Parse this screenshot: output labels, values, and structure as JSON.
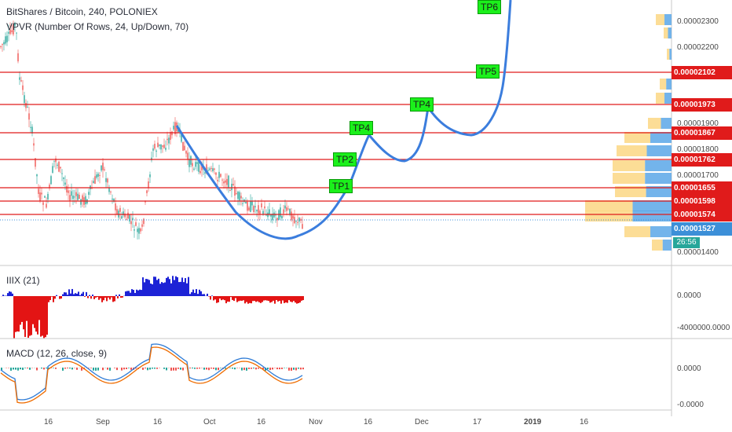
{
  "header": {
    "symbol": "BitShares / Bitcoin, 240, POLONIEX",
    "vpvr": "VPVR (Number Of Rows, 24, Up/Down, 70)",
    "indicator1": "IIIX (21)",
    "indicator2": "MACD (12, 26, close, 9)"
  },
  "price_axis": [
    "0.00002300",
    "0.00002200",
    "0.00001900",
    "0.00001800",
    "0.00001700",
    "0.00001400"
  ],
  "price_lines": [
    {
      "label": "0.00002102",
      "color": "#e01b1b"
    },
    {
      "label": "0.00001973",
      "color": "#e01b1b"
    },
    {
      "label": "0.00001867",
      "color": "#e01b1b"
    },
    {
      "label": "0.00001762",
      "color": "#e01b1b"
    },
    {
      "label": "0.00001655",
      "color": "#e01b1b"
    },
    {
      "label": "0.00001598",
      "color": "#e01b1b"
    },
    {
      "label": "0.00001574",
      "color": "#e01b1b"
    },
    {
      "label": "0.00001527",
      "color": "#3c8fd8"
    }
  ],
  "countdown": "26:56",
  "targets": [
    "TP1",
    "TP2",
    "TP4",
    "TP4",
    "TP5",
    "TP6"
  ],
  "iiix_axis": [
    "0.0000",
    "-4000000.0000"
  ],
  "macd_axis": [
    "0.0000",
    "-0.0000"
  ],
  "time_axis": [
    "16",
    "Sep",
    "16",
    "Oct",
    "16",
    "Nov",
    "16",
    "Dec",
    "17",
    "2019",
    "16"
  ],
  "colors": {
    "up": "#26a69a",
    "down": "#ef5350",
    "level": "#e01b1b",
    "projection": "#3b7ddd",
    "target": "#1bf01b"
  }
}
